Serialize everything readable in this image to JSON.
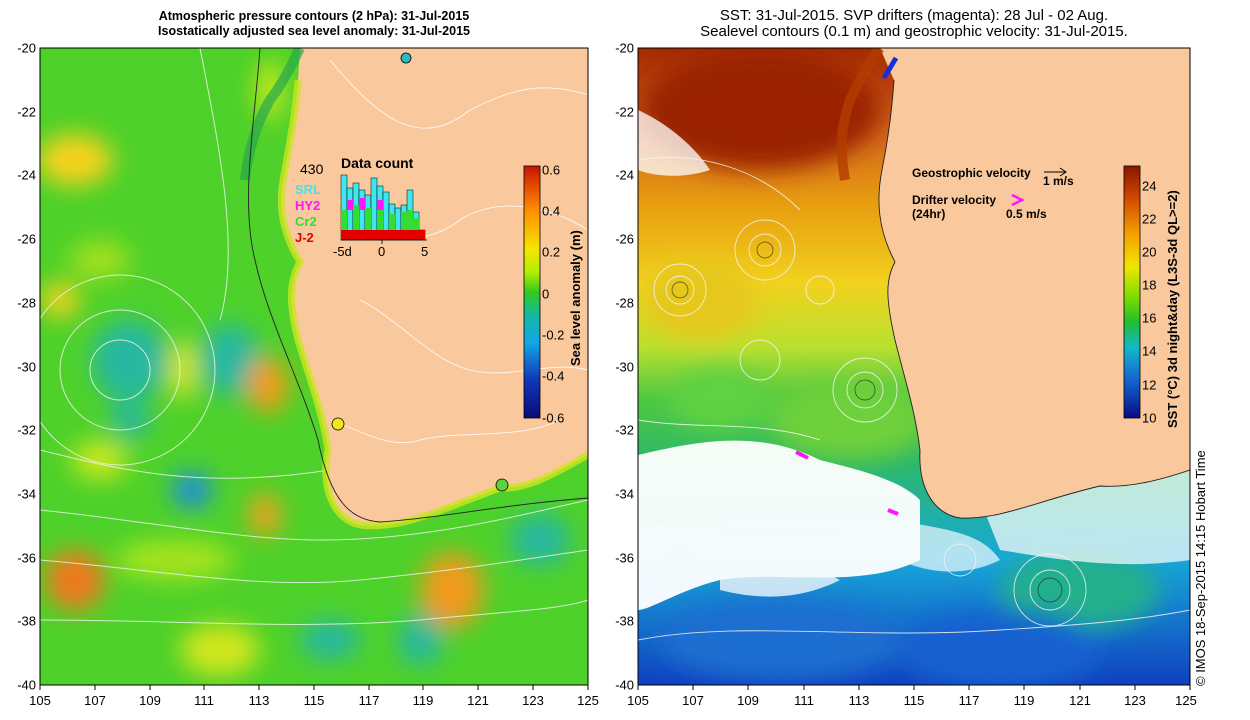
{
  "left_panel": {
    "title_line1": "Atmospheric pressure contours (2 hPa): 31-Jul-2015",
    "title_line2": "Isostatically adjusted sea level anomaly: 31-Jul-2015",
    "colorbar": {
      "label": "Sea level anomaly (m)",
      "ticks": [
        "0.6",
        "0.4",
        "0.2",
        "0",
        "-0.2",
        "-0.4",
        "-0.6"
      ]
    },
    "data_count": {
      "total": "430",
      "title": "Data count",
      "legend": [
        {
          "label": "SRL",
          "color": "#3fe5ef"
        },
        {
          "label": "HY2",
          "color": "#ff14ff"
        },
        {
          "label": "Cr2",
          "color": "#33dd33"
        },
        {
          "label": "J-2",
          "color": "#e50000"
        }
      ],
      "axis_labels": [
        "-5d",
        "0",
        "5"
      ]
    }
  },
  "right_panel": {
    "title_line1": "SST: 31-Jul-2015. SVP drifters (magenta): 28 Jul - 02 Aug.",
    "title_line2": "Sealevel contours (0.1 m) and geostrophic velocity: 31-Jul-2015.",
    "colorbar": {
      "label": "SST (°C) 3d night&day (L3S-3d QL>=2)",
      "ticks": [
        "24",
        "22",
        "20",
        "18",
        "16",
        "14",
        "12",
        "10"
      ]
    },
    "legend": {
      "geostrophic_label": "Geostrophic velocity",
      "geostrophic_scale": "1 m/s",
      "drifter_label": "Drifter velocity",
      "drifter_sub": "(24hr)",
      "drifter_scale": "0.5 m/s"
    }
  },
  "axes": {
    "x_ticks": [
      "105",
      "107",
      "109",
      "111",
      "113",
      "115",
      "117",
      "119",
      "121",
      "123",
      "125"
    ],
    "y_ticks": [
      "-20",
      "-22",
      "-24",
      "-26",
      "-28",
      "-30",
      "-32",
      "-34",
      "-36",
      "-38",
      "-40"
    ]
  },
  "credit": "© IMOS 18-Sep-2015 14:15 Hobart Time",
  "colors": {
    "land": "#f9c89c",
    "sla_bg": "#4ed12a",
    "sst_white": "#ffffff"
  }
}
